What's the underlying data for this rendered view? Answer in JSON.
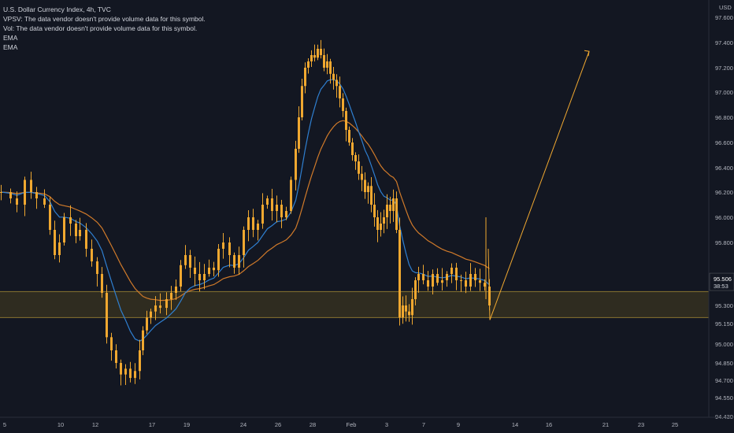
{
  "legend": {
    "symbol": "U.S. Dollar Currency Index, 4h, TVC",
    "vpsv": "VPSV: The data vendor doesn't provide volume data for this symbol.",
    "vol": "Vol: The data vendor doesn't provide volume data for this symbol.",
    "ema1": "EMA",
    "ema2": "EMA"
  },
  "price_axis": {
    "currency": "USD",
    "last_price": "95.506",
    "countdown": "38:53",
    "last_price_color": "#f0a830"
  },
  "colors": {
    "background": "#131722",
    "candle": "#f0a830",
    "ema_fast": "#2f7fd0",
    "ema_slow": "#d07a2a",
    "zone_fill": "#3a3420",
    "zone_border": "#8a7530",
    "projection": "#f0a830"
  },
  "chart_data": {
    "type": "candlestick",
    "y_labels": [
      "97.600",
      "97.400",
      "97.200",
      "97.000",
      "96.800",
      "96.600",
      "96.400",
      "96.200",
      "96.000",
      "95.800",
      "95.500",
      "95.300",
      "95.150",
      "95.000",
      "94.850",
      "94.700",
      "94.550",
      "94.430"
    ],
    "x_labels": [
      "5",
      "10",
      "12",
      "17",
      "19",
      "24",
      "26",
      "28",
      "Feb",
      "3",
      "7",
      "9",
      "14",
      "16",
      "21",
      "23",
      "25"
    ],
    "series": [
      {
        "name": "EMA",
        "color": "#2f7fd0"
      },
      {
        "name": "EMA",
        "color": "#d07a2a"
      }
    ],
    "zone": {
      "top": 95.41,
      "bottom": 95.2
    },
    "projection": [
      {
        "x": "10 Feb",
        "y": 95.18
      },
      {
        "x": "20 Feb",
        "y": 97.33
      }
    ]
  }
}
